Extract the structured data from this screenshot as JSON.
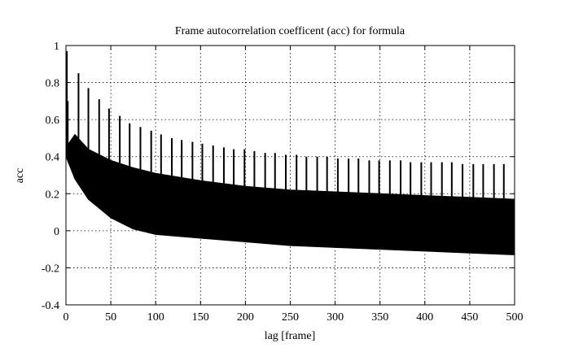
{
  "chart_data": {
    "type": "line",
    "title": "Frame autocorrelation coefficent (acc) for formula",
    "xlabel": "lag [frame]",
    "ylabel": "acc",
    "xlim": [
      0,
      500
    ],
    "ylim": [
      -0.4,
      1
    ],
    "xticks": [
      0,
      50,
      100,
      150,
      200,
      250,
      300,
      350,
      400,
      450,
      500
    ],
    "yticks": [
      -0.4,
      -0.2,
      0,
      0.2,
      0.4,
      0.6,
      0.8,
      1
    ],
    "ytick_labels": [
      "-0.4",
      "-0.2",
      "0",
      "0.2",
      "0.4",
      "0.6",
      "0.8",
      "1"
    ],
    "grid": true,
    "grid_style": "dotted",
    "series_color": "#000000",
    "envelope": {
      "x": [
        0,
        10,
        25,
        50,
        75,
        100,
        150,
        200,
        250,
        300,
        350,
        400,
        450,
        500
      ],
      "upper": [
        0.45,
        0.52,
        0.44,
        0.38,
        0.34,
        0.31,
        0.27,
        0.24,
        0.22,
        0.21,
        0.2,
        0.19,
        0.18,
        0.17
      ],
      "lower": [
        0.4,
        0.28,
        0.17,
        0.07,
        0.01,
        -0.02,
        -0.04,
        -0.06,
        -0.08,
        -0.09,
        -0.1,
        -0.11,
        -0.12,
        -0.13
      ]
    },
    "peaks": {
      "x": [
        1,
        2,
        14,
        25,
        37,
        48,
        60,
        71,
        83,
        95,
        106,
        118,
        129,
        141,
        152,
        164,
        176,
        187,
        199,
        210,
        222,
        233,
        245,
        257,
        268,
        280,
        291,
        303,
        315,
        326,
        338,
        349,
        361,
        373,
        384,
        396,
        407,
        419,
        430,
        442,
        454,
        465,
        477,
        488
      ],
      "y": [
        0.97,
        0.7,
        0.85,
        0.77,
        0.71,
        0.66,
        0.62,
        0.58,
        0.56,
        0.54,
        0.52,
        0.5,
        0.49,
        0.48,
        0.47,
        0.46,
        0.45,
        0.44,
        0.44,
        0.43,
        0.42,
        0.42,
        0.41,
        0.41,
        0.4,
        0.4,
        0.4,
        0.39,
        0.39,
        0.39,
        0.38,
        0.38,
        0.38,
        0.38,
        0.37,
        0.37,
        0.37,
        0.37,
        0.37,
        0.36,
        0.36,
        0.36,
        0.36,
        0.36
      ]
    }
  }
}
